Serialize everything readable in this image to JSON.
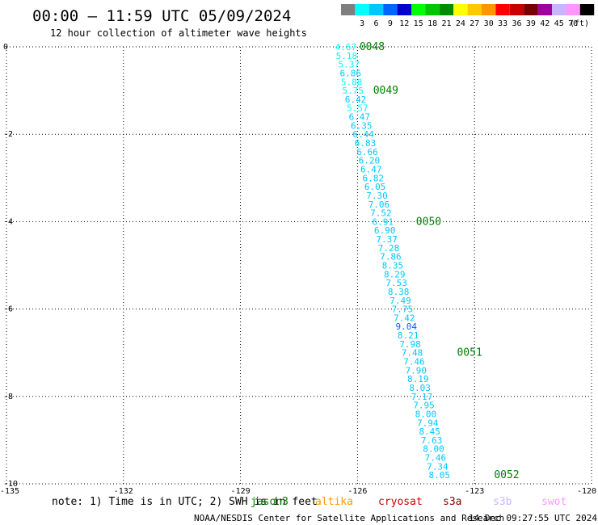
{
  "header": {
    "title": "00:00 — 11:59 UTC 05/09/2024",
    "subtitle": "12 hour collection of altimeter wave heights"
  },
  "colorbar": {
    "unit_label": "(ft)",
    "bins": [
      {
        "label": "",
        "color": "#7f7f7f"
      },
      {
        "label": "3",
        "color": "#00ffff"
      },
      {
        "label": "6",
        "color": "#00c8ff"
      },
      {
        "label": "9",
        "color": "#0064ff"
      },
      {
        "label": "12",
        "color": "#0000c8"
      },
      {
        "label": "15",
        "color": "#00ff00"
      },
      {
        "label": "18",
        "color": "#00c800"
      },
      {
        "label": "21",
        "color": "#008c00"
      },
      {
        "label": "24",
        "color": "#ffff00"
      },
      {
        "label": "27",
        "color": "#ffc800"
      },
      {
        "label": "30",
        "color": "#ff9600"
      },
      {
        "label": "33",
        "color": "#ff0000"
      },
      {
        "label": "36",
        "color": "#c80000"
      },
      {
        "label": "39",
        "color": "#780000"
      },
      {
        "label": "42",
        "color": "#a000a0"
      },
      {
        "label": "45",
        "color": "#c8b4ff"
      },
      {
        "label": "70",
        "color": "#ff96ff"
      },
      {
        "label": "",
        "color": "#000000"
      }
    ]
  },
  "chart_data": {
    "type": "scatter",
    "xlim": [
      -135,
      -120
    ],
    "ylim": [
      -10,
      0
    ],
    "xticks": [
      -135,
      -132,
      -129,
      -126,
      -123,
      -120
    ],
    "xtick_labels": [
      "-135",
      "-132",
      "-129",
      "-126",
      "-123",
      "-120"
    ],
    "yticks": [
      0,
      -2,
      -4,
      -6,
      -8,
      -10
    ],
    "ytick_labels": [
      "0",
      "-2",
      "-4",
      "-6",
      "-8",
      "-10"
    ],
    "grid": true,
    "points": [
      {
        "x": -126.3,
        "y": 0.0,
        "swh": "4.67"
      },
      {
        "x": -126.28,
        "y": -0.2,
        "swh": "5.18"
      },
      {
        "x": -126.22,
        "y": -0.4,
        "swh": "5.37"
      },
      {
        "x": -126.18,
        "y": -0.6,
        "swh": "6.86"
      },
      {
        "x": -126.15,
        "y": -0.8,
        "swh": "5.88"
      },
      {
        "x": -126.12,
        "y": -1.0,
        "swh": "5.75"
      },
      {
        "x": -126.05,
        "y": -1.2,
        "swh": "6.42"
      },
      {
        "x": -126.0,
        "y": -1.4,
        "swh": "5.57"
      },
      {
        "x": -125.95,
        "y": -1.6,
        "swh": "6.47"
      },
      {
        "x": -125.9,
        "y": -1.8,
        "swh": "6.35"
      },
      {
        "x": -125.85,
        "y": -2.0,
        "swh": "6.44"
      },
      {
        "x": -125.8,
        "y": -2.2,
        "swh": "6.83"
      },
      {
        "x": -125.75,
        "y": -2.4,
        "swh": "6.66"
      },
      {
        "x": -125.7,
        "y": -2.6,
        "swh": "6.20"
      },
      {
        "x": -125.65,
        "y": -2.8,
        "swh": "6.47"
      },
      {
        "x": -125.6,
        "y": -3.0,
        "swh": "6.82"
      },
      {
        "x": -125.55,
        "y": -3.2,
        "swh": "6.05"
      },
      {
        "x": -125.5,
        "y": -3.4,
        "swh": "7.30"
      },
      {
        "x": -125.45,
        "y": -3.6,
        "swh": "7.06"
      },
      {
        "x": -125.4,
        "y": -3.8,
        "swh": "7.52"
      },
      {
        "x": -125.35,
        "y": -4.0,
        "swh": "6.91"
      },
      {
        "x": -125.3,
        "y": -4.2,
        "swh": "6.90"
      },
      {
        "x": -125.25,
        "y": -4.4,
        "swh": "7.37"
      },
      {
        "x": -125.2,
        "y": -4.6,
        "swh": "7.28"
      },
      {
        "x": -125.15,
        "y": -4.8,
        "swh": "7.86"
      },
      {
        "x": -125.1,
        "y": -5.0,
        "swh": "8.35"
      },
      {
        "x": -125.05,
        "y": -5.2,
        "swh": "8.29"
      },
      {
        "x": -125.0,
        "y": -5.4,
        "swh": "7.53"
      },
      {
        "x": -124.95,
        "y": -5.6,
        "swh": "8.38"
      },
      {
        "x": -124.9,
        "y": -5.8,
        "swh": "7.49"
      },
      {
        "x": -124.85,
        "y": -6.0,
        "swh": "7.75"
      },
      {
        "x": -124.8,
        "y": -6.2,
        "swh": "7.42"
      },
      {
        "x": -124.75,
        "y": -6.4,
        "swh": "9.04"
      },
      {
        "x": -124.7,
        "y": -6.6,
        "swh": "8.21"
      },
      {
        "x": -124.65,
        "y": -6.8,
        "swh": "7.98"
      },
      {
        "x": -124.6,
        "y": -7.0,
        "swh": "7.48"
      },
      {
        "x": -124.55,
        "y": -7.2,
        "swh": "7.46"
      },
      {
        "x": -124.5,
        "y": -7.4,
        "swh": "7.90"
      },
      {
        "x": -124.45,
        "y": -7.6,
        "swh": "8.19"
      },
      {
        "x": -124.4,
        "y": -7.8,
        "swh": "8.03"
      },
      {
        "x": -124.35,
        "y": -8.0,
        "swh": "7.17"
      },
      {
        "x": -124.3,
        "y": -8.2,
        "swh": "7.95"
      },
      {
        "x": -124.25,
        "y": -8.4,
        "swh": "8.00"
      },
      {
        "x": -124.2,
        "y": -8.6,
        "swh": "7.94"
      },
      {
        "x": -124.15,
        "y": -8.8,
        "swh": "8.45"
      },
      {
        "x": -124.1,
        "y": -9.0,
        "swh": "7.63"
      },
      {
        "x": -124.05,
        "y": -9.2,
        "swh": "8.00"
      },
      {
        "x": -124.0,
        "y": -9.4,
        "swh": "7.46"
      },
      {
        "x": -123.95,
        "y": -9.6,
        "swh": "7.34"
      },
      {
        "x": -123.9,
        "y": -9.8,
        "swh": "8.05"
      }
    ],
    "time_labels": [
      {
        "x": -125.95,
        "y": 0.0,
        "label": "0048"
      },
      {
        "x": -125.6,
        "y": -1.0,
        "label": "0049"
      },
      {
        "x": -124.5,
        "y": -4.0,
        "label": "0050"
      },
      {
        "x": -123.45,
        "y": -7.0,
        "label": "0051"
      },
      {
        "x": -122.5,
        "y": -9.8,
        "label": "0052"
      }
    ]
  },
  "footer": {
    "note": "note: 1) Time is in UTC; 2) SWH is in feet",
    "satellites": [
      {
        "name": "jason3",
        "color": "#007f00"
      },
      {
        "name": "altika",
        "color": "#ff9900"
      },
      {
        "name": "cryosat",
        "color": "#cc0000"
      },
      {
        "name": "s3a",
        "color": "#8b0000"
      },
      {
        "name": "s3b",
        "color": "#c8b4ff"
      },
      {
        "name": "swot",
        "color": "#ff96ff"
      }
    ],
    "credit": "NOAA/NESDIS Center for Satellite Applications and Research",
    "timestamp": "14 Dec 09:27:55 UTC 2024"
  }
}
